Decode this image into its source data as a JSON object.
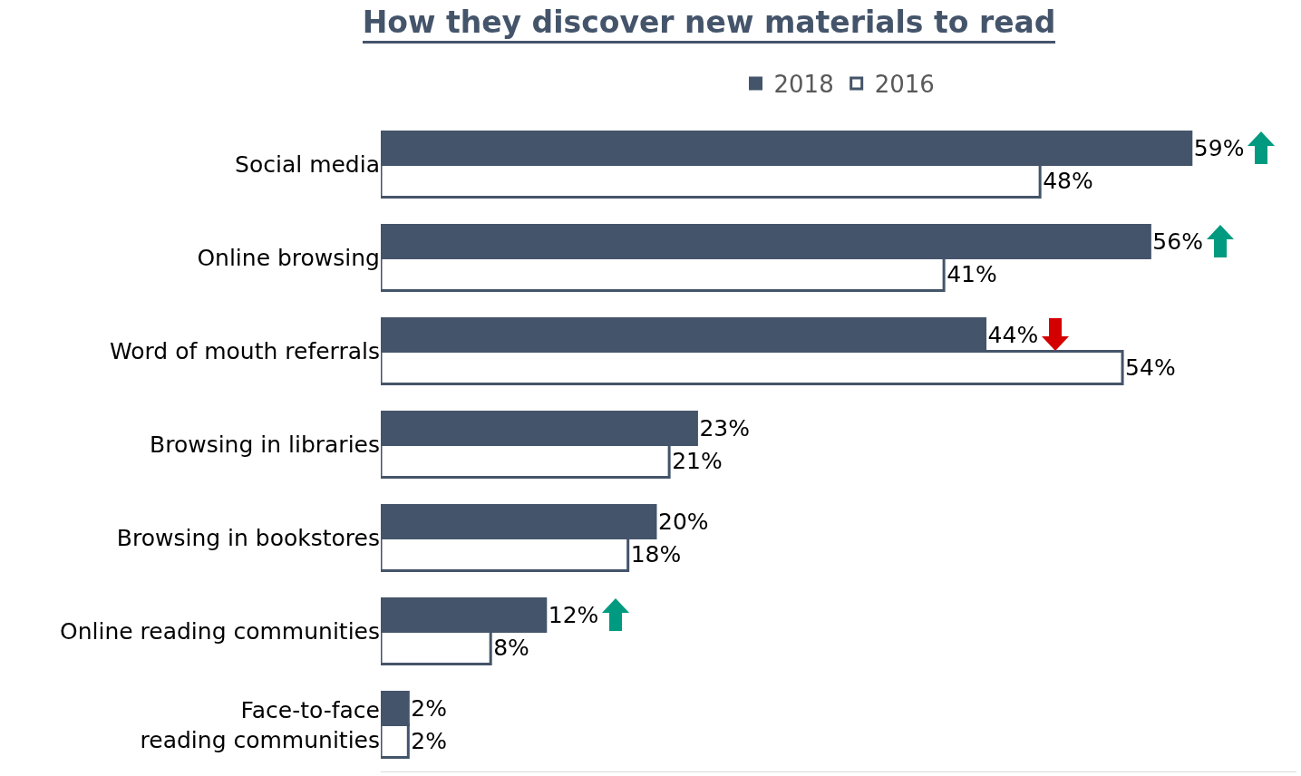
{
  "chart_data": {
    "type": "bar",
    "orientation": "horizontal",
    "title": "How they discover new materials to read",
    "categories": [
      "Social media",
      "Online browsing",
      "Word of mouth referrals",
      "Browsing in libraries",
      "Browsing in bookstores",
      "Online reading communities",
      "Face-to-face reading communities"
    ],
    "series": [
      {
        "name": "2018",
        "color": "#44546a",
        "values": [
          59,
          56,
          44,
          23,
          20,
          12,
          2
        ],
        "value_labels": [
          "59%",
          "56%",
          "44%",
          "23%",
          "20%",
          "12%",
          "2%"
        ]
      },
      {
        "name": "2016",
        "color": "#ffffff",
        "values": [
          48,
          41,
          54,
          21,
          18,
          8,
          2
        ],
        "value_labels": [
          "48%",
          "41%",
          "54%",
          "21%",
          "18%",
          "8%",
          "2%"
        ]
      }
    ],
    "legend": "top",
    "grid": false
  }
}
